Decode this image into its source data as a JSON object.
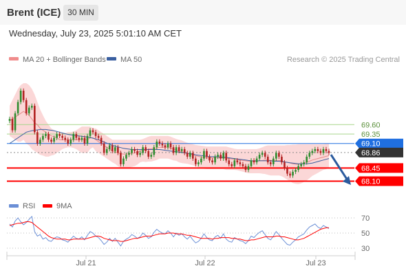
{
  "header": {
    "instrument": "Brent (ICE)",
    "interval": "30 MIN",
    "datetime": "Wednesday, July 23, 2025 5:01:10 AM CET"
  },
  "legend": {
    "ma20": "MA 20 + Bollinger Bands",
    "ma50": "MA 50",
    "rsi": "RSI",
    "ma9": "9MA"
  },
  "credit": "Research © 2025 Trading Central",
  "colors": {
    "up": "#2e8b2e",
    "down": "#b22222",
    "bollinger": "#f7b6b6",
    "ma20": "#e58a8a",
    "ma50": "#3a5fa0",
    "level_blue": "#1f6fe0",
    "level_red": "#ff0000",
    "level_dark": "#333333",
    "resistance": "#a8d68c",
    "rsi": "#6b8fd6",
    "rsi_ma": "#ff0000",
    "arrow": "#2b5b9e"
  },
  "chart_data": [
    {
      "type": "candlestick",
      "x_labels": [
        "Jul 21",
        "Jul 22",
        "Jul 23"
      ],
      "ylim": [
        67.8,
        70.9
      ],
      "levels": [
        {
          "value": 69.6,
          "label": "69.60",
          "style": "resistance"
        },
        {
          "value": 69.35,
          "label": "69.35",
          "style": "resistance"
        },
        {
          "value": 69.1,
          "label": "69.10",
          "style": "blue-tag"
        },
        {
          "value": 68.86,
          "label": "68.86",
          "style": "dark-tag"
        },
        {
          "value": 68.45,
          "label": "68.45",
          "style": "red-tag"
        },
        {
          "value": 68.1,
          "label": "68.10",
          "style": "red-tag"
        }
      ],
      "price": [
        69.75,
        69.45,
        69.9,
        70.2,
        70.5,
        70.25,
        69.9,
        70.05,
        70.1,
        69.4,
        69.1,
        69.2,
        69.3,
        69.35,
        69.2,
        69.15,
        69.25,
        69.35,
        69.3,
        69.25,
        69.2,
        69.1,
        69.2,
        69.35,
        69.25,
        69.2,
        69.25,
        69.1,
        69.3,
        69.45,
        69.4,
        69.3,
        69.25,
        69.1,
        68.85,
        68.95,
        69.05,
        68.9,
        69.0,
        68.85,
        68.55,
        68.7,
        68.8,
        68.85,
        68.95,
        68.9,
        68.8,
        68.85,
        69.0,
        68.9,
        68.75,
        68.8,
        69.0,
        69.15,
        69.1,
        69.05,
        69.0,
        69.1,
        69.0,
        68.85,
        69.0,
        68.9,
        68.95,
        68.85,
        68.75,
        68.85,
        68.7,
        68.55,
        68.6,
        68.7,
        68.9,
        68.75,
        68.65,
        68.6,
        68.75,
        68.8,
        68.7,
        68.85,
        68.65,
        68.55,
        68.5,
        68.65,
        68.6,
        68.55,
        68.5,
        68.4,
        68.5,
        68.65,
        68.6,
        68.7,
        68.8,
        68.85,
        68.75,
        68.6,
        68.55,
        68.7,
        68.85,
        68.75,
        68.6,
        68.45,
        68.3,
        68.25,
        68.35,
        68.4,
        68.5,
        68.55,
        68.6,
        68.75,
        68.85,
        68.9,
        68.95,
        68.9,
        68.85,
        68.95,
        68.9,
        68.85
      ],
      "ma20": [
        69.7,
        69.75,
        69.8,
        69.85,
        69.9,
        69.95,
        69.9,
        69.85,
        69.75,
        69.65,
        69.6,
        69.5,
        69.45,
        69.4,
        69.35,
        69.3,
        69.28,
        69.25,
        69.2,
        69.2,
        69.2,
        69.2,
        69.2,
        69.2,
        69.2,
        69.2,
        69.2,
        69.2,
        69.2,
        69.25,
        69.25,
        69.2,
        69.15,
        69.1,
        69.05,
        69.0,
        68.95,
        68.9,
        68.88,
        68.85,
        68.83,
        68.82,
        68.82,
        68.83,
        68.84,
        68.85,
        68.87,
        68.9,
        68.92,
        68.93,
        68.95,
        68.96,
        68.97,
        68.98,
        69.0,
        69.0,
        69.0,
        69.0,
        68.98,
        68.95,
        68.93,
        68.9,
        68.88,
        68.86,
        68.84,
        68.82,
        68.8,
        68.78,
        68.76,
        68.74,
        68.73,
        68.72,
        68.72,
        68.72,
        68.72,
        68.72,
        68.72,
        68.72,
        68.71,
        68.7,
        68.69,
        68.68,
        68.67,
        68.66,
        68.65,
        68.64,
        68.63,
        68.63,
        68.63,
        68.63,
        68.64,
        68.65,
        68.66,
        68.66,
        68.65,
        68.65,
        68.65,
        68.65,
        68.64,
        68.62,
        68.6,
        68.58,
        68.56,
        68.55,
        68.55,
        68.56,
        68.58,
        68.6,
        68.63,
        68.66,
        68.68,
        68.7,
        68.72,
        68.74,
        68.76,
        68.78
      ],
      "bb_upper": [
        70.1,
        70.25,
        70.4,
        70.55,
        70.65,
        70.7,
        70.7,
        70.65,
        70.55,
        70.4,
        70.2,
        70.0,
        69.85,
        69.7,
        69.6,
        69.5,
        69.45,
        69.4,
        69.38,
        69.38,
        69.38,
        69.4,
        69.4,
        69.42,
        69.45,
        69.5,
        69.55,
        69.55,
        69.55,
        69.55,
        69.5,
        69.5,
        69.45,
        69.4,
        69.35,
        69.3,
        69.25,
        69.2,
        69.2,
        69.2,
        69.2,
        69.2,
        69.2,
        69.2,
        69.2,
        69.2,
        69.2,
        69.2,
        69.22,
        69.25,
        69.28,
        69.3,
        69.3,
        69.3,
        69.3,
        69.3,
        69.3,
        69.3,
        69.28,
        69.25,
        69.22,
        69.2,
        69.18,
        69.15,
        69.12,
        69.1,
        69.08,
        69.06,
        69.05,
        69.04,
        69.03,
        69.02,
        69.02,
        69.02,
        69.02,
        69.02,
        69.02,
        69.02,
        69.02,
        69.0,
        68.98,
        68.96,
        68.95,
        68.95,
        68.95,
        68.95,
        68.95,
        68.95,
        68.95,
        68.95,
        68.97,
        69.0,
        69.03,
        69.05,
        69.05,
        69.05,
        69.05,
        69.05,
        69.05,
        69.05,
        69.06,
        69.06,
        69.07,
        69.07,
        69.08,
        69.08,
        69.08,
        69.08,
        69.08,
        69.08,
        69.08,
        69.08,
        69.08,
        69.08,
        69.1,
        69.1
      ],
      "bb_lower": [
        69.3,
        69.25,
        69.2,
        69.15,
        69.15,
        69.2,
        69.1,
        69.05,
        68.95,
        68.9,
        68.85,
        68.8,
        68.78,
        68.75,
        68.75,
        68.78,
        68.8,
        68.85,
        68.9,
        68.95,
        68.98,
        69.0,
        69.0,
        68.98,
        68.95,
        68.9,
        68.85,
        68.85,
        68.85,
        68.95,
        69.0,
        68.9,
        68.85,
        68.8,
        68.75,
        68.7,
        68.65,
        68.6,
        68.56,
        68.5,
        68.46,
        68.44,
        68.44,
        68.46,
        68.48,
        68.5,
        68.54,
        68.6,
        68.62,
        68.61,
        68.62,
        68.62,
        68.64,
        68.66,
        68.7,
        68.7,
        68.7,
        68.7,
        68.68,
        68.65,
        68.64,
        68.6,
        68.58,
        68.57,
        68.56,
        68.54,
        68.52,
        68.5,
        68.47,
        68.44,
        68.43,
        68.42,
        68.42,
        68.42,
        68.42,
        68.42,
        68.42,
        68.42,
        68.4,
        68.4,
        68.4,
        68.4,
        68.39,
        68.37,
        68.35,
        68.33,
        68.31,
        68.31,
        68.31,
        68.31,
        68.31,
        68.3,
        68.29,
        68.27,
        68.25,
        68.25,
        68.25,
        68.25,
        68.23,
        68.19,
        68.14,
        68.1,
        68.05,
        68.03,
        68.02,
        68.04,
        68.08,
        68.12,
        68.18,
        68.24,
        68.28,
        68.32,
        68.36,
        68.4,
        68.42,
        68.46
      ],
      "ma50": [
        69.1,
        69.15,
        69.2,
        69.25,
        69.3,
        69.35,
        69.4,
        69.42,
        69.44,
        69.45,
        69.46,
        69.47,
        69.47,
        69.47,
        69.46,
        69.45,
        69.44,
        69.42,
        69.4,
        69.38,
        69.36,
        69.34,
        69.33,
        69.32,
        69.31,
        69.3,
        69.29,
        69.28,
        69.27,
        69.26,
        69.24,
        69.22,
        69.2,
        69.17,
        69.14,
        69.11,
        69.08,
        69.05,
        69.03,
        69.01,
        68.99,
        68.97,
        68.96,
        68.95,
        68.94,
        68.94,
        68.94,
        68.94,
        68.94,
        68.94,
        68.94,
        68.94,
        68.94,
        68.94,
        68.94,
        68.93,
        68.92,
        68.91,
        68.9,
        68.89,
        68.88,
        68.87,
        68.86,
        68.85,
        68.84,
        68.83,
        68.82,
        68.8,
        68.79,
        68.78,
        68.77,
        68.76,
        68.75,
        68.75,
        68.75,
        68.75,
        68.74,
        68.74,
        68.73,
        68.72,
        68.71,
        68.7,
        68.69,
        68.68,
        68.67,
        68.66,
        68.65,
        68.64,
        68.64,
        68.64,
        68.64,
        68.64,
        68.64,
        68.64,
        68.64,
        68.63,
        68.63,
        68.63,
        68.62,
        68.61,
        68.6,
        68.59,
        68.58,
        68.57,
        68.56,
        68.56,
        68.56,
        68.56,
        68.57,
        68.58,
        68.6,
        68.62,
        68.64,
        68.66,
        68.68,
        68.7
      ]
    },
    {
      "type": "line",
      "y_ticks": [
        70,
        50,
        30
      ],
      "ylim": [
        20,
        80
      ],
      "series": [
        {
          "name": "RSI",
          "values": [
            62,
            58,
            66,
            70,
            65,
            61,
            64,
            68,
            72,
            52,
            46,
            48,
            42,
            44,
            40,
            39,
            43,
            45,
            44,
            41,
            40,
            38,
            42,
            46,
            43,
            42,
            45,
            41,
            47,
            52,
            50,
            46,
            44,
            40,
            35,
            38,
            43,
            39,
            43,
            38,
            33,
            39,
            42,
            44,
            48,
            46,
            43,
            45,
            50,
            47,
            43,
            45,
            51,
            55,
            52,
            50,
            49,
            53,
            50,
            45,
            50,
            47,
            49,
            45,
            42,
            46,
            41,
            37,
            39,
            43,
            49,
            44,
            41,
            40,
            45,
            47,
            43,
            49,
            42,
            39,
            38,
            44,
            42,
            40,
            39,
            36,
            40,
            46,
            44,
            48,
            51,
            53,
            48,
            43,
            41,
            46,
            52,
            48,
            43,
            39,
            35,
            34,
            38,
            41,
            45,
            47,
            49,
            54,
            58,
            60,
            62,
            58,
            56,
            60,
            58,
            56
          ]
        },
        {
          "name": "9MA",
          "values": [
            60,
            61,
            62,
            63,
            63,
            64,
            65,
            65,
            64,
            61,
            58,
            55,
            52,
            49,
            46,
            44,
            43,
            42,
            42,
            42,
            42,
            41,
            41,
            42,
            42,
            42,
            42,
            42,
            43,
            44,
            45,
            46,
            46,
            45,
            43,
            42,
            41,
            40,
            40,
            40,
            39,
            39,
            40,
            41,
            42,
            43,
            43,
            44,
            45,
            46,
            46,
            46,
            47,
            48,
            49,
            49,
            49,
            50,
            50,
            50,
            49,
            49,
            49,
            48,
            47,
            47,
            46,
            45,
            44,
            43,
            43,
            43,
            43,
            42,
            43,
            43,
            44,
            44,
            44,
            44,
            43,
            43,
            42,
            42,
            41,
            40,
            40,
            41,
            41,
            42,
            43,
            44,
            45,
            45,
            45,
            45,
            46,
            46,
            45,
            45,
            44,
            43,
            42,
            41,
            41,
            42,
            43,
            45,
            47,
            49,
            51,
            53,
            55,
            56,
            57,
            57
          ]
        }
      ]
    }
  ]
}
